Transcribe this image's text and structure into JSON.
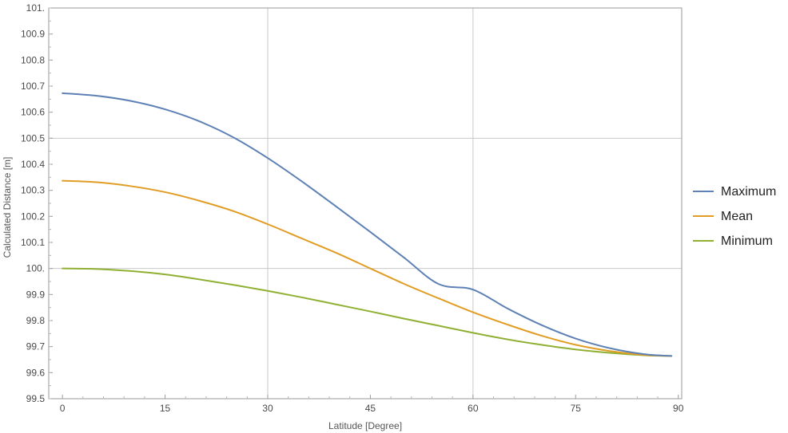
{
  "chart_data": {
    "type": "line",
    "title": "",
    "xlabel": "Latitude [Degree]",
    "ylabel": "Calculated Distance [m]",
    "xlim": [
      -2,
      90.5
    ],
    "ylim": [
      99.5,
      101.0
    ],
    "x_ticks": [
      0,
      15,
      30,
      45,
      60,
      75,
      90
    ],
    "x_tick_labels": [
      "0",
      "15",
      "30",
      "45",
      "60",
      "75",
      "90"
    ],
    "y_ticks": [
      99.5,
      99.6,
      99.7,
      99.8,
      99.9,
      100.0,
      100.1,
      100.2,
      100.3,
      100.4,
      100.5,
      100.6,
      100.7,
      100.8,
      100.9,
      101.0
    ],
    "y_tick_labels": [
      "99.5",
      "99.6",
      "99.7",
      "99.8",
      "99.9",
      "100.",
      "100.1",
      "100.2",
      "100.3",
      "100.4",
      "100.5",
      "100.6",
      "100.7",
      "100.8",
      "100.9",
      "101."
    ],
    "grid_x": [
      30,
      60
    ],
    "grid_y": [
      100.0,
      100.5
    ],
    "legend_position": "right",
    "x": [
      0,
      5,
      10,
      15,
      20,
      25,
      30,
      35,
      40,
      45,
      50,
      55,
      60,
      65,
      70,
      75,
      80,
      85,
      89
    ],
    "series": [
      {
        "name": "Maximum",
        "color": "#5e81b5",
        "values": [
          100.673,
          100.663,
          100.643,
          100.611,
          100.565,
          100.503,
          100.424,
          100.334,
          100.238,
          100.14,
          100.04,
          99.94,
          99.919,
          99.847,
          99.783,
          99.731,
          99.694,
          99.671,
          99.664
        ]
      },
      {
        "name": "Mean",
        "color": "#e19c24",
        "values": [
          100.337,
          100.331,
          100.316,
          100.293,
          100.26,
          100.22,
          100.17,
          100.115,
          100.06,
          100.0,
          99.94,
          99.885,
          99.832,
          99.785,
          99.742,
          99.707,
          99.683,
          99.668,
          99.664
        ]
      },
      {
        "name": "Minimum",
        "color": "#8fb032",
        "values": [
          100.0,
          99.998,
          99.99,
          99.977,
          99.958,
          99.937,
          99.914,
          99.889,
          99.862,
          99.835,
          99.807,
          99.78,
          99.753,
          99.728,
          99.707,
          99.689,
          99.676,
          99.667,
          99.664
        ]
      }
    ]
  }
}
